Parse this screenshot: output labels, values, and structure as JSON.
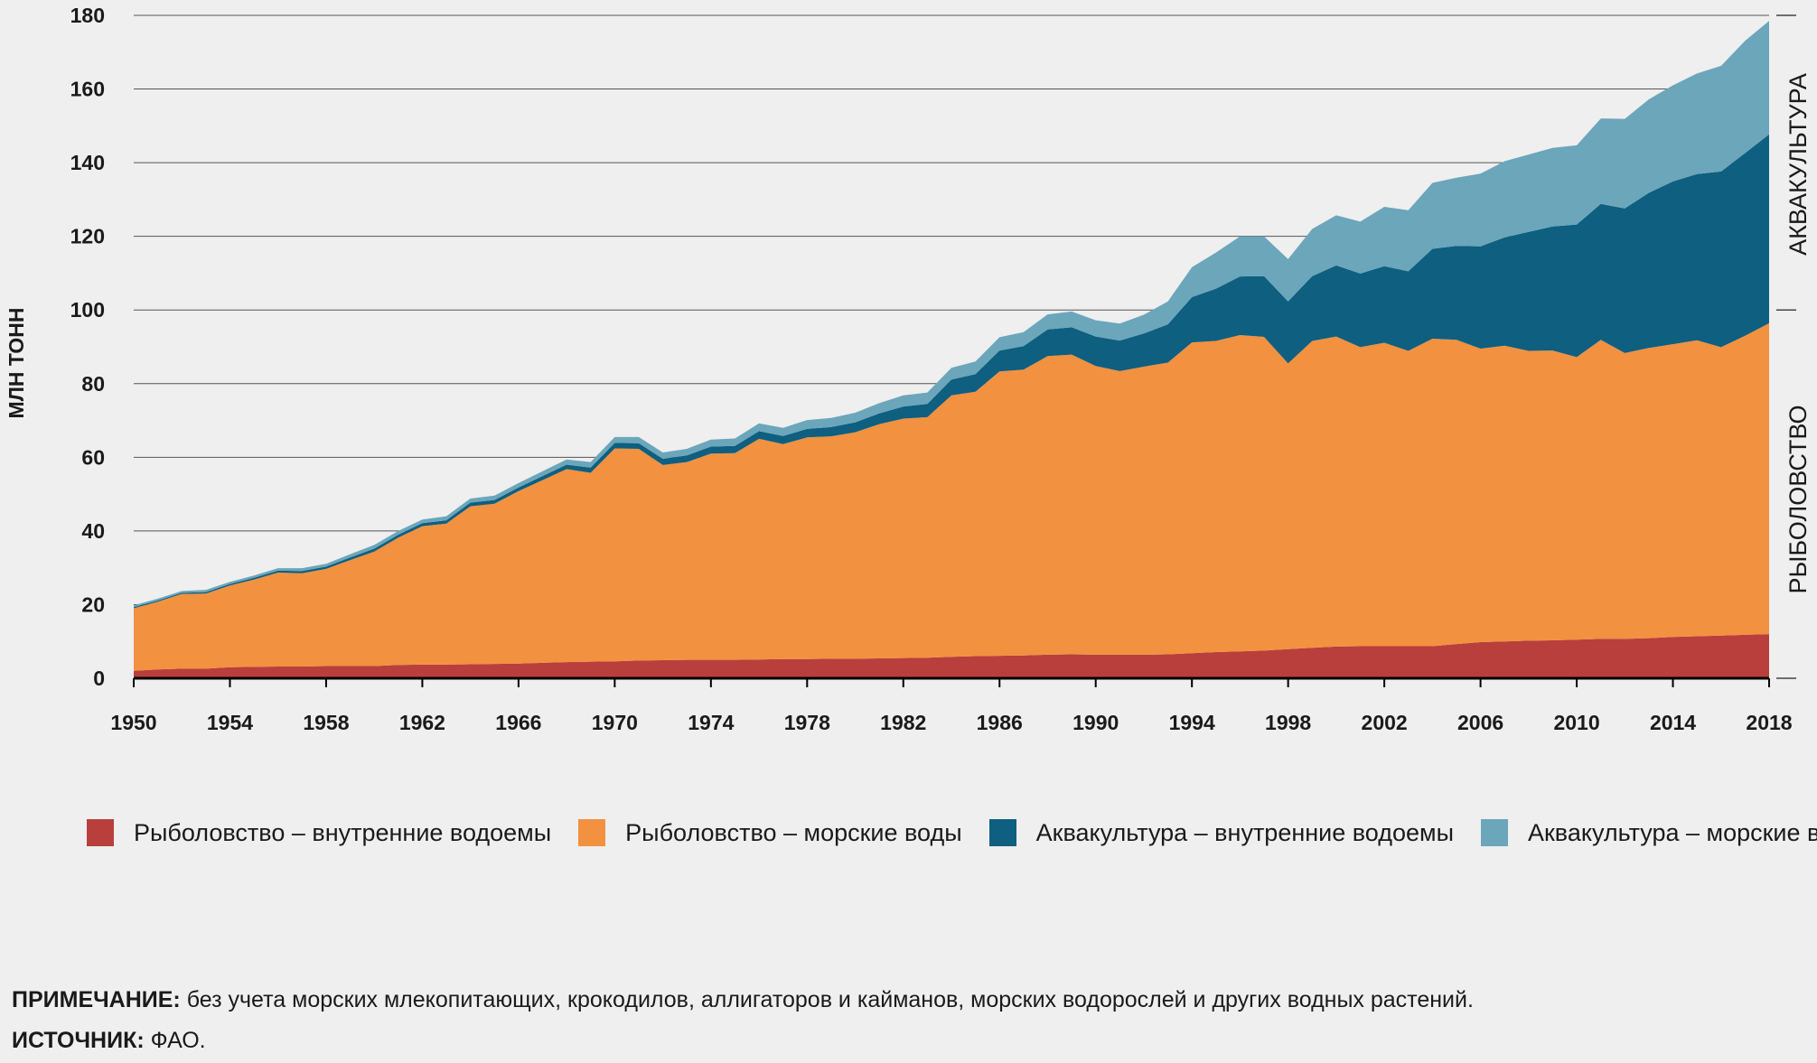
{
  "chart_data": {
    "type": "area",
    "stacked": true,
    "ylabel": "МЛН ТОНН",
    "ylim": [
      0,
      180
    ],
    "yticks": [
      0,
      20,
      40,
      60,
      80,
      100,
      120,
      140,
      160,
      180
    ],
    "xlim": [
      1950,
      2018
    ],
    "xticks": [
      1950,
      1954,
      1958,
      1962,
      1966,
      1970,
      1974,
      1978,
      1982,
      1986,
      1990,
      1994,
      1998,
      2002,
      2006,
      2010,
      2014,
      2018
    ],
    "grid": "horizontal",
    "side_labels": {
      "upper": "АКВАКУЛЬТУРА",
      "lower": "РЫБОЛОВСТВО"
    },
    "x": [
      1950,
      1951,
      1952,
      1953,
      1954,
      1955,
      1956,
      1957,
      1958,
      1959,
      1960,
      1961,
      1962,
      1963,
      1964,
      1965,
      1966,
      1967,
      1968,
      1969,
      1970,
      1971,
      1972,
      1973,
      1974,
      1975,
      1976,
      1977,
      1978,
      1979,
      1980,
      1981,
      1982,
      1983,
      1984,
      1985,
      1986,
      1987,
      1988,
      1989,
      1990,
      1991,
      1992,
      1993,
      1994,
      1995,
      1996,
      1997,
      1998,
      1999,
      2000,
      2001,
      2002,
      2003,
      2004,
      2005,
      2006,
      2007,
      2008,
      2009,
      2010,
      2011,
      2012,
      2013,
      2014,
      2015,
      2016,
      2017,
      2018
    ],
    "series": [
      {
        "name": "Рыболовство – внутренние водоемы",
        "color": "#b93f3c",
        "values": [
          2.0,
          2.4,
          2.6,
          2.6,
          3.0,
          3.1,
          3.2,
          3.2,
          3.3,
          3.3,
          3.3,
          3.6,
          3.7,
          3.7,
          3.8,
          3.9,
          4.0,
          4.2,
          4.4,
          4.5,
          4.6,
          4.8,
          4.9,
          5.0,
          5.0,
          5.0,
          5.1,
          5.2,
          5.2,
          5.3,
          5.3,
          5.4,
          5.5,
          5.6,
          5.8,
          6.0,
          6.1,
          6.2,
          6.4,
          6.5,
          6.4,
          6.4,
          6.4,
          6.5,
          6.8,
          7.1,
          7.3,
          7.5,
          7.9,
          8.3,
          8.6,
          8.7,
          8.7,
          8.7,
          8.7,
          9.3,
          9.8,
          10.0,
          10.2,
          10.3,
          10.5,
          10.7,
          10.7,
          10.9,
          11.2,
          11.4,
          11.6,
          11.8,
          12.0
        ]
      },
      {
        "name": "Рыболовство – морские воды",
        "color": "#f29140",
        "values": [
          17.0,
          18.4,
          20.3,
          20.4,
          22.2,
          23.7,
          25.5,
          25.3,
          26.4,
          28.8,
          31.1,
          34.6,
          37.6,
          38.3,
          42.9,
          43.5,
          46.8,
          49.6,
          52.4,
          51.3,
          57.8,
          57.5,
          53.0,
          53.7,
          56.0,
          56.1,
          59.9,
          58.4,
          60.2,
          60.4,
          61.5,
          63.6,
          65.0,
          65.3,
          71.0,
          71.8,
          77.2,
          77.6,
          81.1,
          81.4,
          78.4,
          77.0,
          78.2,
          79.2,
          84.4,
          84.5,
          85.9,
          85.2,
          77.6,
          83.3,
          84.2,
          81.2,
          82.4,
          80.2,
          83.5,
          82.6,
          79.7,
          80.3,
          78.7,
          78.7,
          76.7,
          81.2,
          77.6,
          78.8,
          79.5,
          80.4,
          78.3,
          81.2,
          84.4
        ]
      },
      {
        "name": "Аквакультура – внутренние водоемы",
        "color": "#0e5f80",
        "values": [
          0.3,
          0.3,
          0.3,
          0.4,
          0.4,
          0.5,
          0.5,
          0.6,
          0.6,
          0.7,
          0.8,
          0.8,
          0.8,
          0.9,
          1.0,
          1.0,
          1.0,
          1.1,
          1.2,
          1.4,
          1.5,
          1.5,
          1.7,
          1.8,
          1.9,
          2.0,
          2.1,
          2.2,
          2.3,
          2.5,
          2.7,
          2.9,
          3.3,
          3.6,
          4.3,
          4.8,
          5.7,
          6.4,
          7.2,
          7.4,
          8.0,
          8.3,
          9.0,
          10.4,
          12.3,
          14.2,
          15.9,
          16.5,
          16.8,
          17.6,
          19.3,
          20.0,
          20.8,
          21.6,
          24.4,
          25.5,
          27.8,
          29.4,
          32.3,
          33.7,
          36.0,
          36.9,
          39.3,
          42.1,
          44.2,
          45.1,
          47.7,
          49.6,
          51.3
        ]
      },
      {
        "name": "Аквакультура – морские воды",
        "color": "#6ba6bb",
        "values": [
          0.5,
          0.5,
          0.5,
          0.6,
          0.6,
          0.6,
          0.7,
          0.8,
          0.8,
          0.9,
          1.0,
          1.0,
          1.0,
          1.1,
          1.1,
          1.2,
          1.2,
          1.3,
          1.4,
          1.5,
          1.6,
          1.7,
          1.7,
          1.8,
          1.9,
          2.0,
          2.1,
          2.2,
          2.4,
          2.5,
          2.6,
          2.8,
          3.0,
          3.1,
          3.2,
          3.4,
          3.6,
          3.8,
          4.1,
          4.3,
          4.4,
          4.6,
          5.1,
          6.2,
          8.1,
          9.8,
          10.9,
          10.8,
          11.5,
          12.8,
          13.6,
          14.1,
          16.1,
          16.6,
          17.9,
          18.5,
          19.7,
          20.7,
          21.0,
          21.3,
          21.5,
          23.2,
          24.3,
          25.4,
          26.1,
          27.3,
          28.7,
          30.5,
          30.8
        ]
      }
    ]
  },
  "legend": {
    "items": [
      {
        "label": "Рыболовство – внутренние водоемы",
        "color": "#b93f3c"
      },
      {
        "label": "Рыболовство – морские воды",
        "color": "#f29140"
      },
      {
        "label": "Аквакультура – внутренние водоемы",
        "color": "#0e5f80"
      },
      {
        "label": "Аквакультура – морские воды",
        "color": "#6ba6bb"
      }
    ]
  },
  "notes": {
    "note_label": "ПРИМЕЧАНИЕ:",
    "note_text": "без учета морских млекопитающих, крокодилов, аллигаторов и кайманов, морских водорослей и других водных растений.",
    "source_label": "ИСТОЧНИК:",
    "source_text": "ФАО."
  }
}
